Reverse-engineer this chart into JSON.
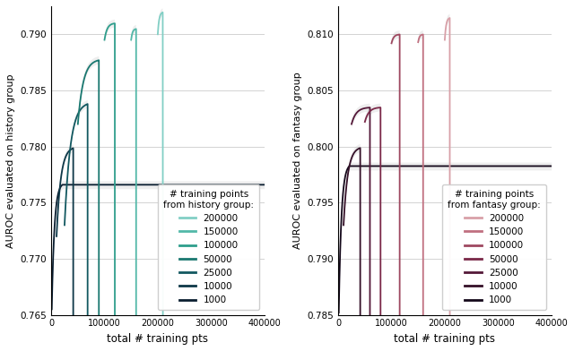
{
  "left_ylabel": "AUROC evaluated on history group",
  "right_ylabel": "AUROC evaluated on fantasy group",
  "xlabel": "total # training pts",
  "left_legend_title": "# training points\nfrom history group:",
  "right_legend_title": "# training points\nfrom fantasy group:",
  "group_sizes": [
    1000,
    10000,
    25000,
    50000,
    100000,
    150000,
    200000
  ],
  "left_ylim": [
    0.765,
    0.792
  ],
  "right_ylim": [
    0.785,
    0.812
  ],
  "xlim": [
    0,
    400000
  ],
  "left_yticks": [
    0.765,
    0.77,
    0.775,
    0.78,
    0.785,
    0.79
  ],
  "right_yticks": [
    0.785,
    0.79,
    0.795,
    0.8,
    0.805,
    0.81
  ],
  "h_colors": [
    "#82cfc5",
    "#52b8a8",
    "#2e9e8c",
    "#1a7870",
    "#125860",
    "#0e3848",
    "#0a1e30"
  ],
  "f_colors": [
    "#d8a0a8",
    "#c07080",
    "#9e4860",
    "#7a2848",
    "#541838",
    "#341028",
    "#14081a"
  ],
  "legend_labels": [
    "200000",
    "150000",
    "100000",
    "50000",
    "25000",
    "10000",
    "1000"
  ]
}
